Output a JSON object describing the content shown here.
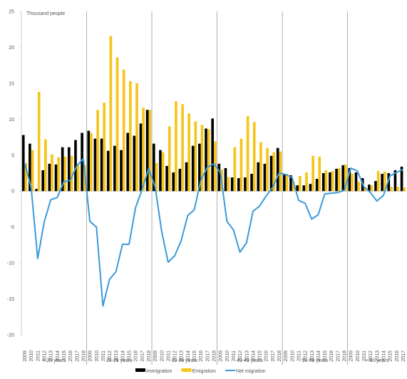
{
  "chart_data": {
    "type": "bar-line",
    "ylabel": "Thousand people",
    "ylim": [
      -20,
      25
    ],
    "yticks": [
      -20,
      -15,
      -10,
      -5,
      0,
      5,
      10,
      15,
      20,
      25
    ],
    "groups": [
      {
        "label": "< 20 years",
        "categories": [
          "2009",
          "2010",
          "2011",
          "2012",
          "2013",
          "2014",
          "2015",
          "2016",
          "2017",
          "2018"
        ]
      },
      {
        "label": "20-29 years",
        "categories": [
          "2009",
          "2010",
          "2011",
          "2012",
          "2013",
          "2014",
          "2015",
          "2016",
          "2017",
          "2018"
        ]
      },
      {
        "label": "30-39 years",
        "categories": [
          "2009",
          "2010",
          "2011",
          "2012",
          "2013",
          "2014",
          "2015",
          "2016",
          "2017",
          "2018"
        ]
      },
      {
        "label": "40-49 years",
        "categories": [
          "2009",
          "2010",
          "2011",
          "2012",
          "2013",
          "2014",
          "2015",
          "2016",
          "2017",
          "2018"
        ]
      },
      {
        "label": "50-59 years",
        "categories": [
          "2009",
          "2010",
          "2011",
          "2012",
          "2013",
          "2014",
          "2015",
          "2016",
          "2017",
          "2018"
        ]
      },
      {
        "label": "> 60 years",
        "categories": [
          "2009",
          "2010",
          "2011",
          "2012",
          "2013",
          "2014",
          "2015",
          "2016",
          "2017"
        ]
      }
    ],
    "series": [
      {
        "name": "Immigration",
        "type": "bar",
        "color": "#000000",
        "values": [
          7.8,
          6.6,
          0.3,
          2.9,
          3.8,
          3.7,
          6.1,
          6.1,
          7.1,
          8.1,
          8.4,
          7.3,
          7.3,
          5.6,
          6.3,
          5.7,
          8.1,
          7.7,
          9.4,
          11.3,
          6.6,
          5.7,
          3.5,
          2.6,
          3.1,
          4.0,
          6.3,
          6.6,
          8.7,
          10.1,
          3.8,
          3.2,
          1.9,
          1.8,
          1.9,
          2.4,
          4.0,
          3.8,
          4.9,
          6.0,
          2.4,
          2.2,
          0.8,
          0.8,
          1.0,
          1.7,
          2.5,
          2.6,
          3.1,
          3.6,
          3.2,
          2.6,
          1.8,
          0.9,
          1.4,
          2.4,
          2.5,
          2.9,
          3.4
        ]
      },
      {
        "name": "Emigration",
        "type": "bar",
        "color": "#f5c518",
        "values": [
          3.9,
          5.7,
          13.8,
          7.2,
          5.1,
          4.7,
          4.8,
          4.9,
          3.6,
          3.6,
          8.1,
          11.3,
          12.3,
          21.6,
          18.6,
          16.9,
          15.3,
          15.0,
          11.6,
          11.3,
          3.9,
          5.4,
          9.0,
          12.5,
          12.1,
          10.8,
          9.7,
          9.2,
          8.6,
          6.9,
          3.0,
          1.9,
          6.1,
          7.3,
          10.4,
          9.6,
          6.8,
          6.0,
          5.4,
          5.5,
          2.4,
          1.3,
          2.1,
          2.6,
          4.9,
          4.8,
          2.9,
          2.8,
          3.2,
          3.7,
          2.4,
          1.3,
          0.5,
          0.8,
          2.8,
          2.7,
          0.6,
          0.6,
          0.5
        ]
      },
      {
        "name": "Net migration",
        "type": "line",
        "color": "#3a9ad9",
        "values": [
          3.9,
          0.5,
          -9.4,
          -4.3,
          -1.2,
          -0.9,
          1.3,
          1.5,
          3.5,
          4.5,
          -4.2,
          -5.0,
          -16.0,
          -12.3,
          -11.2,
          -7.4,
          -7.4,
          -2.3,
          0.2,
          3.1,
          0.6,
          -5.6,
          -9.9,
          -9.0,
          -6.9,
          -3.4,
          -2.6,
          1.5,
          3.3,
          3.8,
          2.6,
          -4.2,
          -5.4,
          -8.5,
          -7.2,
          -2.8,
          -2.1,
          -0.7,
          0.5,
          2.5,
          2.3,
          1.9,
          -1.3,
          -1.7,
          -3.9,
          -3.3,
          -0.4,
          -0.3,
          -0.2,
          0.1,
          3.2,
          2.8,
          0.6,
          -0.2,
          -1.4,
          -0.6,
          2.1,
          2.6,
          3.0
        ]
      }
    ]
  }
}
